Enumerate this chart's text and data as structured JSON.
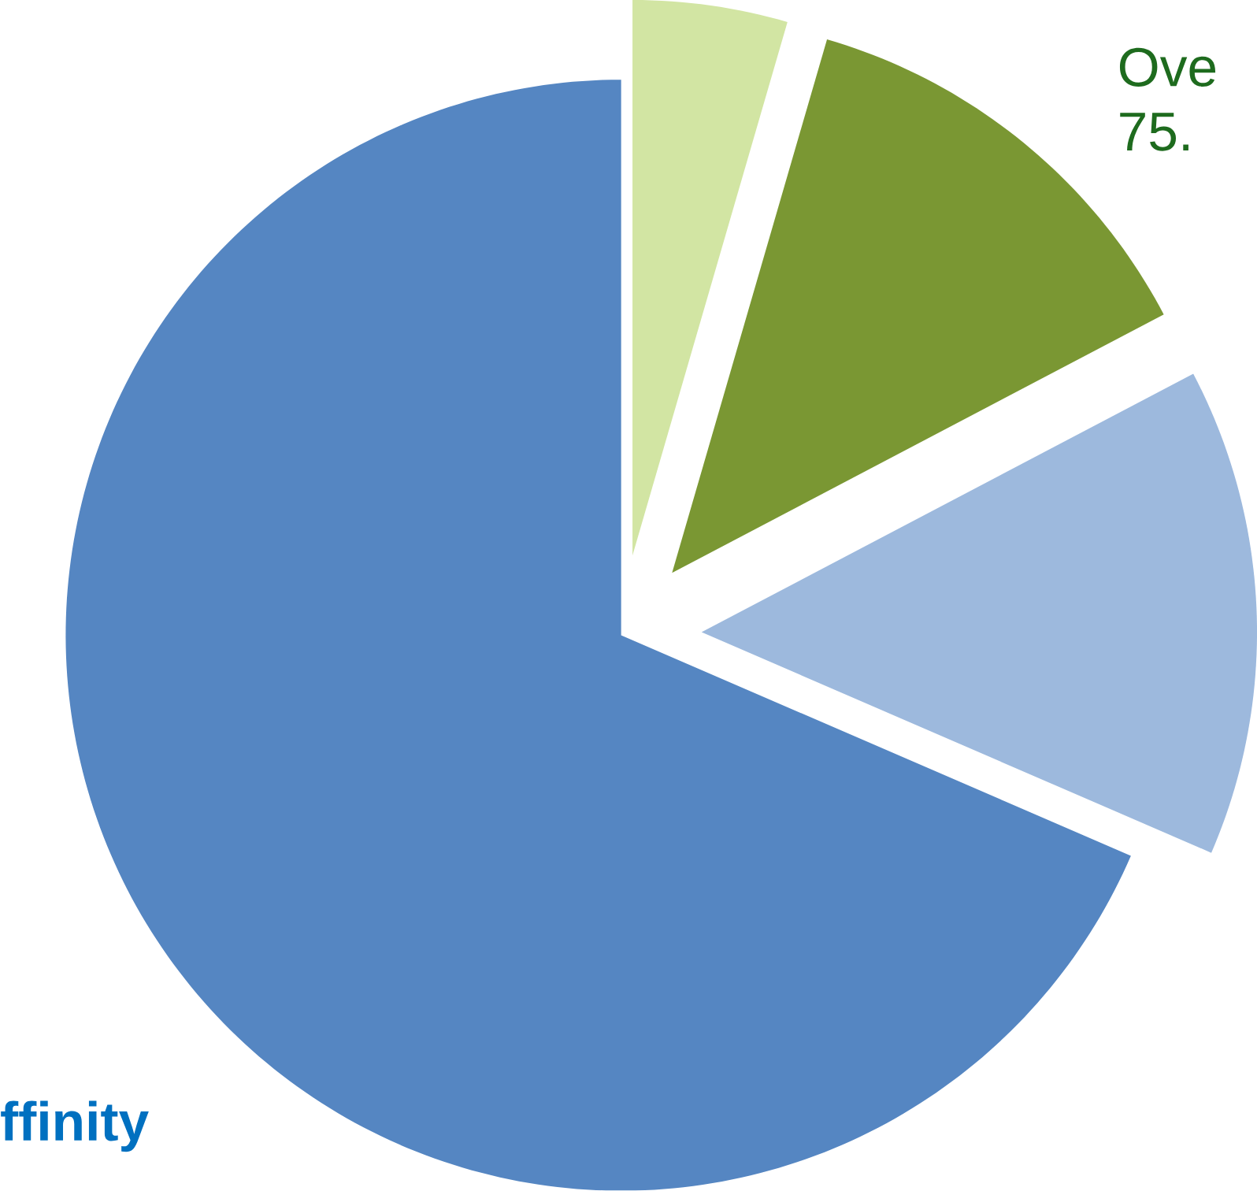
{
  "chart_data": {
    "type": "pie",
    "categories": [
      null,
      "Ove 75.",
      null,
      "ffinity"
    ],
    "values": [
      4.5,
      12.8,
      14.2,
      68.5
    ],
    "colors": [
      "#d2e5a3",
      "#7a9733",
      "#9db9dd",
      "#5586c2"
    ]
  }
}
